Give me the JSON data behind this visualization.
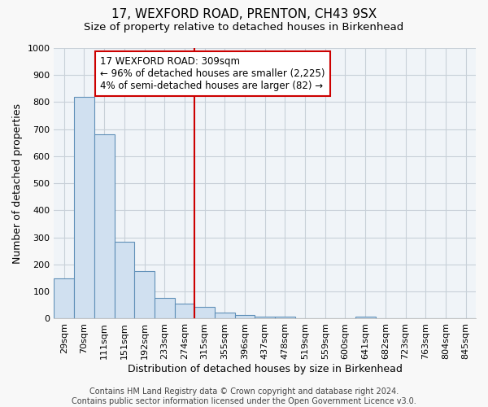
{
  "title": "17, WEXFORD ROAD, PRENTON, CH43 9SX",
  "subtitle": "Size of property relative to detached houses in Birkenhead",
  "xlabel": "Distribution of detached houses by size in Birkenhead",
  "ylabel": "Number of detached properties",
  "bar_labels": [
    "29sqm",
    "70sqm",
    "111sqm",
    "151sqm",
    "192sqm",
    "233sqm",
    "274sqm",
    "315sqm",
    "355sqm",
    "396sqm",
    "437sqm",
    "478sqm",
    "519sqm",
    "559sqm",
    "600sqm",
    "641sqm",
    "682sqm",
    "723sqm",
    "763sqm",
    "804sqm",
    "845sqm"
  ],
  "bar_values": [
    150,
    820,
    680,
    285,
    175,
    78,
    55,
    43,
    22,
    14,
    8,
    7,
    0,
    0,
    0,
    8,
    0,
    0,
    0,
    0,
    0
  ],
  "bar_color": "#d0e0f0",
  "bar_edge_color": "#6090b8",
  "property_line_x": 7.0,
  "property_line_color": "#cc0000",
  "annotation_text": "17 WEXFORD ROAD: 309sqm\n← 96% of detached houses are smaller (2,225)\n4% of semi-detached houses are larger (82) →",
  "annotation_box_color": "#ffffff",
  "annotation_box_edge_color": "#cc0000",
  "ylim": [
    0,
    1000
  ],
  "yticks": [
    0,
    100,
    200,
    300,
    400,
    500,
    600,
    700,
    800,
    900,
    1000
  ],
  "footer1": "Contains HM Land Registry data © Crown copyright and database right 2024.",
  "footer2": "Contains public sector information licensed under the Open Government Licence v3.0.",
  "background_color": "#f8f8f8",
  "plot_background_color": "#f0f4f8",
  "grid_color": "#c8d0d8",
  "title_fontsize": 11,
  "subtitle_fontsize": 9.5,
  "axis_label_fontsize": 9,
  "tick_fontsize": 8,
  "annotation_fontsize": 8.5,
  "footer_fontsize": 7
}
